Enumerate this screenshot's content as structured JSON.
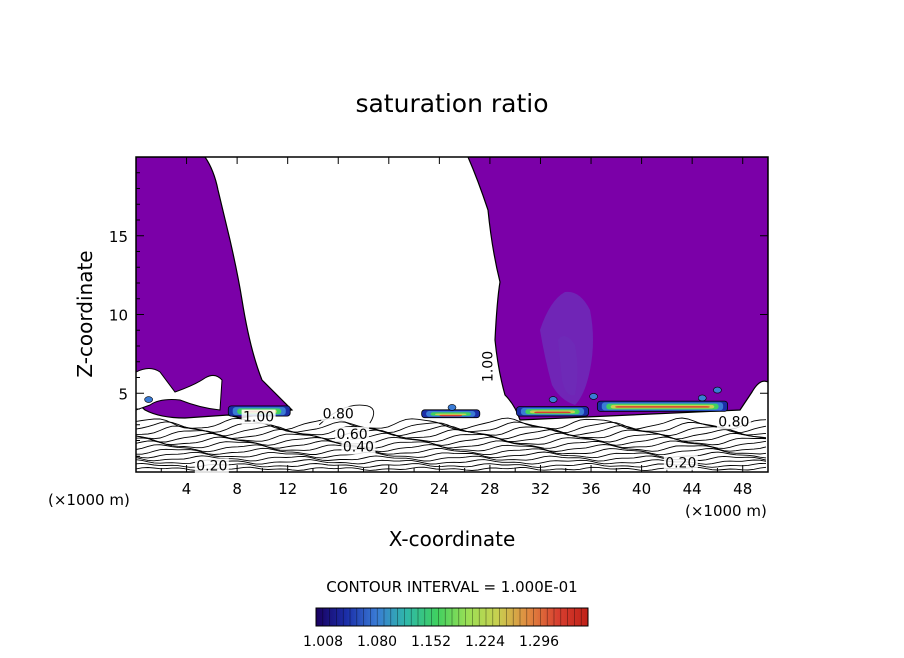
{
  "chart_data": {
    "type": "contour",
    "title": "saturation ratio",
    "xlabel": "X-coordinate",
    "ylabel": "Z-coordinate",
    "x_unit_left": "(×1000 m)",
    "x_unit_right": "(×1000 m)",
    "xlim": [
      0,
      50
    ],
    "ylim": [
      0,
      20
    ],
    "xticks": [
      4,
      8,
      12,
      16,
      20,
      24,
      28,
      32,
      36,
      40,
      44,
      48
    ],
    "yticks": [
      5,
      10,
      15
    ],
    "contour_interval_text": "CONTOUR INTERVAL = 1.000E-01",
    "colorbar_ticks": [
      "1.008",
      "1.080",
      "1.152",
      "1.224",
      "1.296"
    ],
    "colorbar_stops": [
      "#1a0060",
      "#1b2ea8",
      "#3a7bd5",
      "#2fb8a8",
      "#3fd060",
      "#9adf55",
      "#c8d050",
      "#e08a40",
      "#d84030",
      "#c02018"
    ],
    "fill_color": "#7b00a8",
    "inner_color": "#6e2cb8",
    "contour_labels": [
      {
        "text": "1.00",
        "x": 9.7,
        "z": 3.2
      },
      {
        "text": "0.80",
        "x": 16.0,
        "z": 3.4
      },
      {
        "text": "0.60",
        "x": 17.1,
        "z": 2.1
      },
      {
        "text": "0.40",
        "x": 17.6,
        "z": 1.3
      },
      {
        "text": "0.20",
        "x": 6.0,
        "z": 0.1
      },
      {
        "text": "1.00",
        "x": 28.2,
        "z": 6.7
      },
      {
        "text": "0.80",
        "x": 47.3,
        "z": 2.9
      },
      {
        "text": "0.20",
        "x": 43.1,
        "z": 0.3
      }
    ],
    "levels": [
      0.2,
      0.4,
      0.6,
      0.8,
      1.0
    ]
  }
}
